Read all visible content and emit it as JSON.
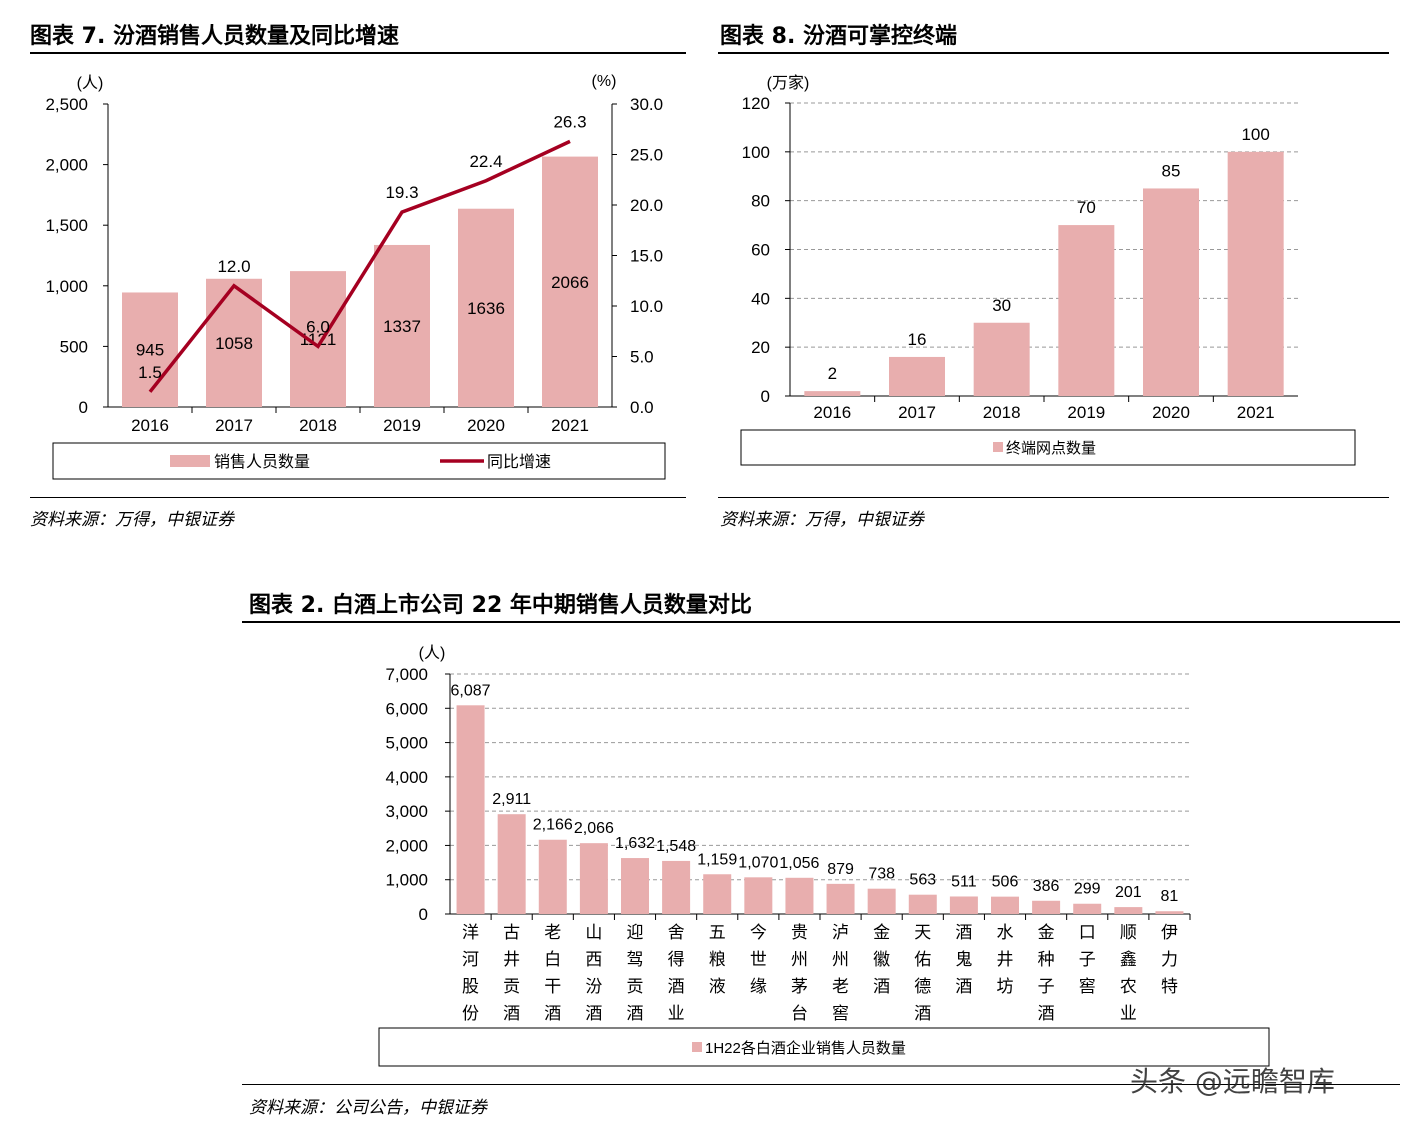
{
  "colors": {
    "bar": "#e8aeae",
    "line": "#a50021",
    "grid": "#999999"
  },
  "chart7": {
    "title": "图表 7. 汾酒销售人员数量及同比增速",
    "source": "资料来源：万得，中银证券"
  },
  "chart8": {
    "title": "图表 8. 汾酒可掌控终端",
    "source": "资料来源：万得，中银证券"
  },
  "chart2": {
    "title": "图表 2. 白酒上市公司 22 年中期销售人员数量对比",
    "source": "资料来源：公司公告，中银证券"
  },
  "watermark": "头条 @远瞻智库",
  "chart_data": [
    {
      "type": "bar",
      "categories": [
        "2016",
        "2017",
        "2018",
        "2019",
        "2020",
        "2021"
      ],
      "series": [
        {
          "name": "销售人员数量",
          "type": "bar",
          "axis": "left",
          "values": [
            945,
            1058,
            1121,
            1337,
            1636,
            2066
          ],
          "labels": [
            "945",
            "1058",
            "1121",
            "1337",
            "1636",
            "2066"
          ]
        },
        {
          "name": "同比增速",
          "type": "line",
          "axis": "right",
          "values": [
            1.5,
            12.0,
            6.0,
            19.3,
            22.4,
            26.3
          ],
          "labels": [
            "1.5",
            "12.0",
            "6.0",
            "19.3",
            "22.4",
            "26.3"
          ]
        }
      ],
      "ylabel": "(人)",
      "y2label": "(%)",
      "ylim": [
        0,
        2500
      ],
      "y2lim": [
        0,
        30
      ],
      "yticks": [
        "0",
        "500",
        "1,000",
        "1,500",
        "2,000",
        "2,500"
      ],
      "y2ticks": [
        "0.0",
        "5.0",
        "10.0",
        "15.0",
        "20.0",
        "25.0",
        "30.0"
      ],
      "grid": false,
      "legend": "bottom"
    },
    {
      "type": "bar",
      "categories": [
        "2016",
        "2017",
        "2018",
        "2019",
        "2020",
        "2021"
      ],
      "series": [
        {
          "name": "终端网点数量",
          "values": [
            2,
            16,
            30,
            70,
            85,
            100
          ],
          "labels": [
            "2",
            "16",
            "30",
            "70",
            "85",
            "100"
          ]
        }
      ],
      "ylabel": "(万家)",
      "ylim": [
        0,
        120
      ],
      "yticks": [
        "0",
        "20",
        "40",
        "60",
        "80",
        "100",
        "120"
      ],
      "grid": true,
      "legend": "bottom"
    },
    {
      "type": "bar",
      "categories": [
        "洋河股份",
        "古井贡酒",
        "老白干酒",
        "山西汾酒",
        "迎驾贡酒",
        "舍得酒业",
        "五粮液",
        "今世缘",
        "贵州茅台",
        "泸州老窖",
        "金徽酒",
        "天佑德酒",
        "酒鬼酒",
        "水井坊",
        "金种子酒",
        "口子窖",
        "顺鑫农业",
        "伊力特"
      ],
      "series": [
        {
          "name": "1H22各白酒企业销售人员数量",
          "values": [
            6087,
            2911,
            2166,
            2066,
            1632,
            1548,
            1159,
            1070,
            1056,
            879,
            738,
            563,
            511,
            506,
            386,
            299,
            201,
            81
          ],
          "labels": [
            "6,087",
            "2,911",
            "2,166",
            "2,066",
            "1,632",
            "1,548",
            "1,159",
            "1,070",
            "1,056",
            "879",
            "738",
            "563",
            "511",
            "506",
            "386",
            "299",
            "201",
            "81"
          ]
        }
      ],
      "ylabel": "(人)",
      "ylim": [
        0,
        7000
      ],
      "yticks": [
        "0",
        "1,000",
        "2,000",
        "3,000",
        "4,000",
        "5,000",
        "6,000",
        "7,000"
      ],
      "grid": true,
      "legend": "bottom"
    }
  ]
}
